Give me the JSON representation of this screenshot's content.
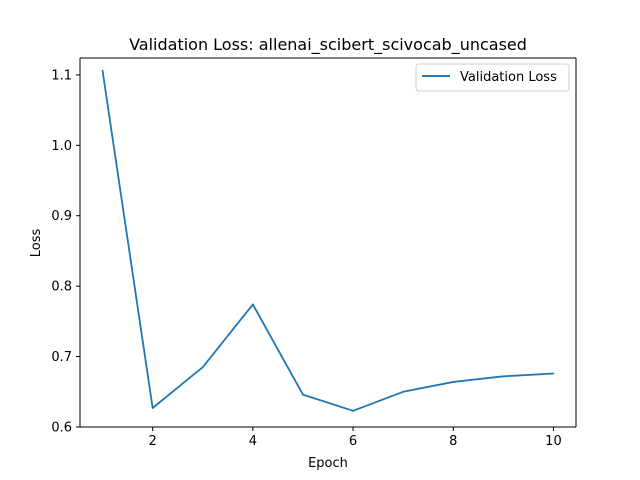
{
  "chart_data": {
    "type": "line",
    "title": "Validation Loss: allenai_scibert_scivocab_uncased",
    "xlabel": "Epoch",
    "ylabel": "Loss",
    "x": [
      1,
      2,
      3,
      4,
      5,
      6,
      7,
      8,
      9,
      10
    ],
    "series": [
      {
        "name": "Validation Loss",
        "color": "#1f77b4",
        "values": [
          1.106,
          0.627,
          0.685,
          0.774,
          0.646,
          0.623,
          0.65,
          0.664,
          0.672,
          0.676
        ]
      }
    ],
    "xlim": [
      0.55,
      10.45
    ],
    "ylim": [
      0.6,
      1.124
    ],
    "xticks": [
      2,
      4,
      6,
      8,
      10
    ],
    "xtick_labels": [
      "2",
      "4",
      "6",
      "8",
      "10"
    ],
    "yticks": [
      0.6,
      0.7,
      0.8,
      0.9,
      1.0,
      1.1
    ],
    "ytick_labels": [
      "0.6",
      "0.7",
      "0.8",
      "0.9",
      "1.0",
      "1.1"
    ],
    "grid": false,
    "legend_position": "top-right"
  }
}
